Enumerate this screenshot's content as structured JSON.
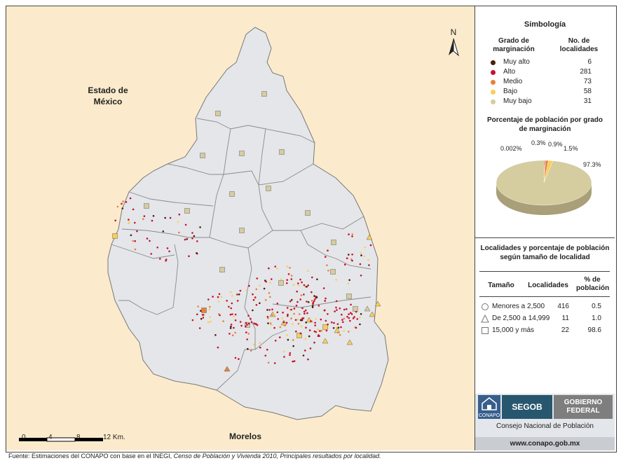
{
  "map": {
    "region_labels": {
      "north_west": "Estado de México",
      "south": "Morelos"
    },
    "north_arrow": "N",
    "scale": {
      "labels": [
        "0",
        "4",
        "8",
        "12 Km."
      ]
    },
    "colors": {
      "background": "#fbebcc",
      "territory": "#e5e6e9",
      "border": "#888888"
    },
    "localities": [
      {
        "marker": "square",
        "class": "Muy bajo"
      },
      {
        "marker": "square",
        "class": "Bajo"
      },
      {
        "marker": "square",
        "class": "Medio"
      },
      {
        "marker": "triangle",
        "class": "Bajo"
      },
      {
        "marker": "triangle",
        "class": "Medio"
      },
      {
        "marker": "circle",
        "class": "Alto"
      }
    ]
  },
  "legend": {
    "title": "Simbología",
    "col_grado": "Grado de marginación",
    "col_localidades": "No. de localidades",
    "items": [
      {
        "name": "Muy alto",
        "count": "6",
        "color": "#4a1e0c"
      },
      {
        "name": "Alto",
        "count": "281",
        "color": "#c8102e"
      },
      {
        "name": "Medio",
        "count": "73",
        "color": "#e8813a"
      },
      {
        "name": "Bajo",
        "count": "58",
        "color": "#f6cf55"
      },
      {
        "name": "Muy bajo",
        "count": "31",
        "color": "#d5cca0"
      }
    ]
  },
  "pie": {
    "title": "Porcentaje de población por grado de marginación",
    "labels": [
      "0.002%",
      "0.3%",
      "0.9%",
      "1.5%",
      "97.3%"
    ]
  },
  "chart_data": {
    "type": "pie",
    "title": "Porcentaje de población por grado de marginación",
    "categories": [
      "Muy alto",
      "Alto",
      "Medio",
      "Bajo",
      "Muy bajo"
    ],
    "values": [
      0.002,
      0.3,
      0.9,
      1.5,
      97.3
    ],
    "colors": [
      "#4a1e0c",
      "#c8102e",
      "#e8813a",
      "#f6cf55",
      "#d5cca0"
    ]
  },
  "size_table": {
    "title": "Localidades y porcentaje de población según tamaño de localidad",
    "headers": [
      "Tamaño",
      "Localidades",
      "% de población"
    ],
    "rows": [
      {
        "symbol": "circle",
        "name": "Menores a 2,500",
        "count": "416",
        "pct": "0.5"
      },
      {
        "symbol": "triangle",
        "name": "De 2,500 a 14,999",
        "count": "11",
        "pct": "1.0"
      },
      {
        "symbol": "square",
        "name": "15,000 y más",
        "count": "22",
        "pct": "98.6"
      }
    ]
  },
  "logos": {
    "conapo": "CONAPO",
    "segob": "SEGOB",
    "gobierno": "GOBIERNO FEDERAL",
    "consejo": "Consejo Nacional de Población",
    "web": "www.conapo.gob.mx"
  },
  "source": {
    "prefix": "Fuente: Estimaciones del CONAPO con base en el INEGI, ",
    "italic": "Censo de Población y Vivienda 2010, Principales resultados por localidad."
  }
}
